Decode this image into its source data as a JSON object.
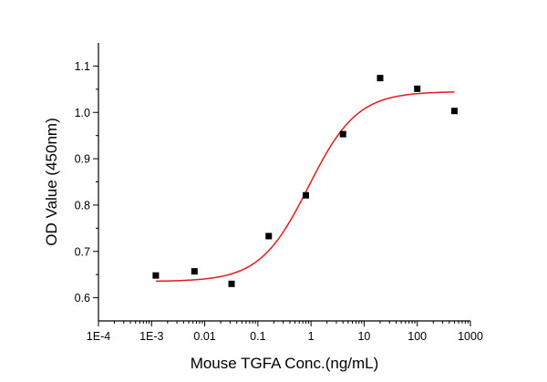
{
  "chart_data": {
    "type": "scatter",
    "title": "",
    "xlabel": "Mouse TGFA Conc.(ng/mL)",
    "ylabel": "OD Value (450nm)",
    "x_scale": "log",
    "xlim": [
      0.0001,
      1000
    ],
    "ylim": [
      0.55,
      1.15
    ],
    "x_ticks": [
      0.0001,
      0.001,
      0.01,
      0.1,
      1,
      10,
      100,
      1000
    ],
    "x_tick_labels": [
      "1E-4",
      "1E-3",
      "0.01",
      "0.1",
      "1",
      "10",
      "100",
      "1000"
    ],
    "y_ticks": [
      0.6,
      0.7,
      0.8,
      0.9,
      1.0,
      1.1
    ],
    "y_tick_labels": [
      "0.6",
      "0.7",
      "0.8",
      "0.9",
      "1.0",
      "1.1"
    ],
    "grid": false,
    "series": [
      {
        "type": "scatter",
        "marker": "square",
        "color": "#000000",
        "x": [
          0.0012,
          0.0064,
          0.032,
          0.16,
          0.8,
          4,
          20,
          100,
          500
        ],
        "y": [
          0.648,
          0.657,
          0.63,
          0.733,
          0.821,
          0.953,
          1.074,
          1.051,
          1.003
        ]
      },
      {
        "type": "line",
        "fit": "4PL",
        "color": "#e41a1c",
        "x_range": [
          0.0012,
          500
        ],
        "bottom": 0.635,
        "top": 1.045,
        "ec50": 0.9,
        "hill": 0.95
      }
    ]
  }
}
